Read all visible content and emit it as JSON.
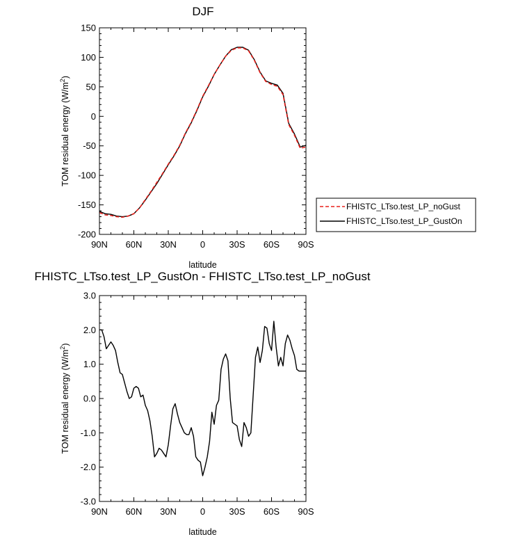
{
  "chart_data": [
    {
      "type": "line",
      "title": "DJF",
      "xlabel": "latitude",
      "ylabel": "TOM residual energy (W/m²)",
      "xlim": [
        90,
        -90
      ],
      "ylim": [
        -200,
        150
      ],
      "x_ticks": [
        {
          "value": 90,
          "label": "90N"
        },
        {
          "value": 60,
          "label": "60N"
        },
        {
          "value": 30,
          "label": "30N"
        },
        {
          "value": 0,
          "label": "0"
        },
        {
          "value": -30,
          "label": "30S"
        },
        {
          "value": -60,
          "label": "60S"
        },
        {
          "value": -90,
          "label": "90S"
        }
      ],
      "y_ticks": [
        {
          "value": 150,
          "label": "150"
        },
        {
          "value": 100,
          "label": "100"
        },
        {
          "value": 50,
          "label": "50"
        },
        {
          "value": 0,
          "label": "0"
        },
        {
          "value": -50,
          "label": "-50"
        },
        {
          "value": -100,
          "label": "-100"
        },
        {
          "value": -150,
          "label": "-150"
        },
        {
          "value": -200,
          "label": "-200"
        }
      ],
      "legend": {
        "placement": "right",
        "entries": [
          {
            "name": "FHISTC_LTso.test_LP_noGust",
            "color": "#e8201a",
            "style": "dashed"
          },
          {
            "name": "FHISTC_LTso.test_LP_GustOn",
            "color": "#000000",
            "style": "solid"
          }
        ]
      },
      "series": [
        {
          "name": "FHISTC_LTso.test_LP_noGust",
          "color": "#e8201a",
          "x": [
            90,
            85,
            80,
            75,
            70,
            65,
            60,
            55,
            50,
            45,
            40,
            35,
            30,
            25,
            20,
            15,
            10,
            5,
            0,
            -5,
            -10,
            -15,
            -20,
            -25,
            -30,
            -35,
            -40,
            -45,
            -50,
            -55,
            -60,
            -65,
            -70,
            -75,
            -80,
            -85,
            -90
          ],
          "values": [
            -163,
            -167,
            -168,
            -170,
            -171,
            -169,
            -165,
            -155,
            -141,
            -127,
            -112,
            -97,
            -81,
            -66,
            -49,
            -28,
            -10,
            11,
            34,
            52,
            71,
            87,
            102,
            112,
            116,
            116,
            111,
            95,
            74,
            59,
            54,
            51,
            37,
            -14,
            -32,
            -54,
            -52
          ]
        },
        {
          "name": "FHISTC_LTso.test_LP_GustOn",
          "color": "#000000",
          "x": [
            90,
            85,
            80,
            75,
            70,
            65,
            60,
            55,
            50,
            45,
            40,
            35,
            30,
            25,
            20,
            15,
            10,
            5,
            0,
            -5,
            -10,
            -15,
            -20,
            -25,
            -30,
            -35,
            -40,
            -45,
            -50,
            -55,
            -60,
            -65,
            -70,
            -75,
            -80,
            -85,
            -90
          ],
          "values": [
            -161,
            -165,
            -166,
            -169,
            -170,
            -169,
            -165,
            -155,
            -142,
            -128,
            -114,
            -98,
            -82,
            -67,
            -50,
            -29,
            -11,
            10,
            33,
            51,
            71,
            87,
            102,
            113,
            117,
            117,
            112,
            96,
            75,
            60,
            56,
            53,
            39,
            -12,
            -30,
            -52,
            -49
          ]
        }
      ]
    },
    {
      "type": "line",
      "title": "FHISTC_LTso.test_LP_GustOn - FHISTC_LTso.test_LP_noGust",
      "xlabel": "latitude",
      "ylabel": "TOM residual energy (W/m²)",
      "xlim": [
        90,
        -90
      ],
      "ylim": [
        -3.0,
        3.0
      ],
      "x_ticks": [
        {
          "value": 90,
          "label": "90N"
        },
        {
          "value": 60,
          "label": "60N"
        },
        {
          "value": 30,
          "label": "30N"
        },
        {
          "value": 0,
          "label": "0"
        },
        {
          "value": -30,
          "label": "30S"
        },
        {
          "value": -60,
          "label": "60S"
        },
        {
          "value": -90,
          "label": "90S"
        }
      ],
      "y_ticks": [
        {
          "value": 3.0,
          "label": "3.0"
        },
        {
          "value": 2.0,
          "label": "2.0"
        },
        {
          "value": 1.0,
          "label": "1.0"
        },
        {
          "value": 0.0,
          "label": "0.0"
        },
        {
          "value": -1.0,
          "label": "-1.0"
        },
        {
          "value": -2.0,
          "label": "-2.0"
        },
        {
          "value": -3.0,
          "label": "-3.0"
        }
      ],
      "series": [
        {
          "name": "difference",
          "color": "#000000",
          "x": [
            90,
            88,
            86,
            84,
            82,
            80,
            78,
            76,
            74,
            72,
            70,
            68,
            66,
            64,
            62,
            60,
            58,
            56,
            54,
            52,
            50,
            48,
            46,
            44,
            42,
            40,
            38,
            36,
            34,
            32,
            30,
            28,
            26,
            24,
            22,
            20,
            18,
            16,
            14,
            12,
            10,
            8,
            6,
            4,
            2,
            0,
            -2,
            -4,
            -6,
            -8,
            -10,
            -12,
            -14,
            -16,
            -18,
            -20,
            -22,
            -24,
            -26,
            -28,
            -30,
            -32,
            -34,
            -36,
            -38,
            -40,
            -42,
            -44,
            -46,
            -48,
            -50,
            -52,
            -54,
            -56,
            -58,
            -60,
            -62,
            -64,
            -66,
            -68,
            -70,
            -72,
            -74,
            -76,
            -78,
            -80,
            -82,
            -84,
            -86,
            -88,
            -90
          ],
          "values": [
            2.0,
            2.0,
            1.8,
            1.45,
            1.55,
            1.65,
            1.55,
            1.4,
            1.05,
            0.75,
            0.7,
            0.45,
            0.2,
            0.0,
            0.05,
            0.3,
            0.35,
            0.3,
            0.05,
            0.1,
            -0.2,
            -0.35,
            -0.65,
            -1.1,
            -1.7,
            -1.6,
            -1.45,
            -1.5,
            -1.6,
            -1.7,
            -1.35,
            -0.8,
            -0.3,
            -0.15,
            -0.45,
            -0.7,
            -0.85,
            -1.0,
            -1.05,
            -1.05,
            -0.85,
            -1.1,
            -1.7,
            -1.8,
            -1.85,
            -2.25,
            -2.0,
            -1.7,
            -1.25,
            -0.4,
            -0.75,
            -0.2,
            -0.05,
            0.85,
            1.15,
            1.3,
            1.1,
            0.0,
            -0.7,
            -0.75,
            -0.8,
            -1.2,
            -1.4,
            -0.7,
            -0.85,
            -1.1,
            -1.0,
            0.1,
            1.2,
            1.5,
            1.05,
            1.4,
            2.1,
            2.05,
            1.6,
            1.4,
            2.25,
            1.5,
            0.95,
            1.2,
            0.95,
            1.6,
            1.85,
            1.7,
            1.45,
            1.25,
            0.85,
            0.8,
            0.8,
            0.8,
            0.8
          ]
        }
      ]
    }
  ]
}
